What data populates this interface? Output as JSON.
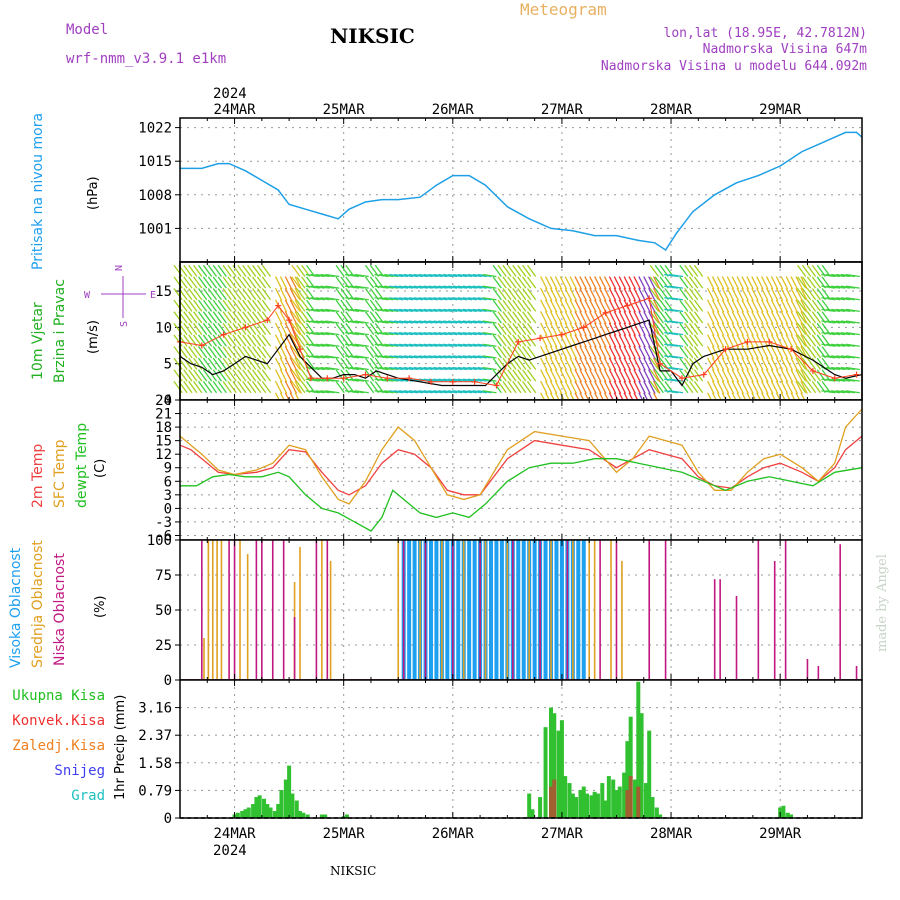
{
  "header": {
    "model_label": "Model",
    "model_name": "wrf-nmm_v3.9.1 e1km",
    "station": "NIKSIC",
    "title": "Meteogram",
    "lonlat": "lon,lat (18.95E, 42.7812N)",
    "elev": "Nadmorska Visina 647m",
    "elev_model": "Nadmorska Visina u modelu 644.092m"
  },
  "footer": {
    "station": "NIKSIC",
    "credit": "made by Angel"
  },
  "colors": {
    "pressure": "#1e9fe6",
    "t2m": "#f04040",
    "sfc": "#e0a020",
    "dew": "#20c020",
    "cloud_high": "#1ea0f0",
    "cloud_mid": "#e0a020",
    "cloud_low": "#c01880",
    "precip_total": "#30c030",
    "precip_conv": "#f03030",
    "precip_frozen": "#f08020",
    "snow": "#4040f0",
    "graupel": "#20c0c0",
    "wind_compass": "#a040c0",
    "wind_speed": "#000000",
    "gust": "#ff4020"
  },
  "chart_data": [
    {
      "type": "line",
      "id": "pressure",
      "ylabel": "Pritisak na nivou mora",
      "unit": "(hPa)",
      "year_label": "2024",
      "date_labels": [
        "24MAR",
        "25MAR",
        "26MAR",
        "27MAR",
        "28MAR",
        "29MAR"
      ],
      "date_positions": [
        0.5,
        1.5,
        2.5,
        3.5,
        4.5,
        5.5
      ],
      "xlim": [
        0,
        6.25
      ],
      "ylim": [
        994,
        1024
      ],
      "yticks": [
        1001,
        1008,
        1015,
        1022
      ],
      "x": [
        0,
        0.2,
        0.35,
        0.45,
        0.6,
        0.75,
        0.9,
        1.0,
        1.15,
        1.3,
        1.45,
        1.55,
        1.7,
        1.85,
        2.0,
        2.2,
        2.35,
        2.5,
        2.65,
        2.8,
        3.0,
        3.2,
        3.4,
        3.6,
        3.8,
        4.0,
        4.2,
        4.35,
        4.45,
        4.55,
        4.7,
        4.9,
        5.1,
        5.3,
        5.5,
        5.7,
        5.85,
        6.0,
        6.1,
        6.2,
        6.25
      ],
      "y": [
        1013.5,
        1013.5,
        1014.5,
        1014.5,
        1013,
        1011,
        1009,
        1006,
        1005,
        1004,
        1003,
        1005,
        1006.5,
        1007,
        1007,
        1007.5,
        1010,
        1012,
        1012,
        1010,
        1005.5,
        1003,
        1001,
        1000.5,
        999.5,
        999.5,
        998.5,
        998,
        996.5,
        1000,
        1004.5,
        1008,
        1010.5,
        1012,
        1014,
        1017,
        1018.5,
        1020,
        1021,
        1021,
        1020
      ]
    },
    {
      "type": "line",
      "id": "wind",
      "ylabel": [
        "10m Vjetar",
        "Brzina i Pravac"
      ],
      "unit": "(m/s)",
      "compass": {
        "north": "N",
        "south": "S",
        "west": "W",
        "east": "E"
      },
      "xlim": [
        0,
        6.25
      ],
      "ylim": [
        0,
        19
      ],
      "yticks": [
        0,
        5,
        10,
        15
      ],
      "speed": {
        "x": [
          0,
          0.1,
          0.2,
          0.3,
          0.4,
          0.5,
          0.6,
          0.7,
          0.8,
          0.9,
          1.0,
          1.1,
          1.2,
          1.3,
          1.4,
          1.5,
          1.6,
          1.7,
          1.8,
          1.9,
          2.0,
          2.2,
          2.4,
          2.6,
          2.8,
          3.0,
          3.1,
          3.2,
          3.3,
          3.4,
          3.5,
          3.6,
          3.7,
          3.8,
          3.9,
          4.0,
          4.1,
          4.2,
          4.3,
          4.4,
          4.5,
          4.6,
          4.7,
          4.8,
          5.0,
          5.2,
          5.4,
          5.6,
          5.8,
          6.0,
          6.1,
          6.25
        ],
        "y": [
          6,
          5,
          4.5,
          3.5,
          4,
          5,
          6,
          5.5,
          5,
          7,
          9,
          6,
          4.5,
          3,
          3,
          3.5,
          3.5,
          3,
          4,
          3.5,
          3,
          2.5,
          2,
          2,
          2,
          5,
          6,
          5.5,
          6,
          6.5,
          7,
          7.5,
          8,
          8.5,
          9,
          9.5,
          10,
          10.5,
          11,
          4,
          4,
          2,
          5,
          6,
          7,
          7,
          7.5,
          7,
          5.5,
          3.5,
          3,
          3.5
        ]
      },
      "gust": {
        "x": [
          0,
          0.2,
          0.4,
          0.6,
          0.8,
          0.9,
          1.0,
          1.1,
          1.2,
          1.35,
          1.5,
          1.7,
          1.9,
          2.1,
          2.3,
          2.5,
          2.7,
          2.9,
          3.1,
          3.3,
          3.5,
          3.7,
          3.9,
          4.1,
          4.3,
          4.4,
          4.6,
          4.8,
          5.0,
          5.2,
          5.4,
          5.6,
          5.8,
          6.0,
          6.2
        ],
        "y": [
          8,
          7.5,
          9,
          10,
          11,
          13,
          11,
          7,
          3,
          3,
          3,
          3.5,
          3,
          3,
          2.5,
          2.5,
          2.5,
          2,
          8,
          8.5,
          9,
          10,
          12,
          13,
          14,
          5,
          3,
          3.5,
          7,
          8,
          8,
          7,
          4,
          3,
          3.5
        ]
      }
    },
    {
      "type": "line",
      "id": "temperature",
      "ylabel": [
        "2m Temp",
        "SFC Temp",
        "dewpt Temp"
      ],
      "unit": "(C)",
      "xlim": [
        0,
        6.25
      ],
      "ylim": [
        -7,
        24
      ],
      "yticks": [
        -6,
        -3,
        0,
        3,
        6,
        9,
        12,
        15,
        18,
        21,
        24
      ],
      "series": [
        {
          "name": "2m Temp",
          "key": "t2m",
          "x": [
            0,
            0.1,
            0.2,
            0.35,
            0.5,
            0.7,
            0.85,
            1.0,
            1.15,
            1.3,
            1.45,
            1.55,
            1.7,
            1.85,
            2.0,
            2.15,
            2.3,
            2.45,
            2.6,
            2.75,
            3.0,
            3.25,
            3.5,
            3.75,
            4.0,
            4.15,
            4.3,
            4.45,
            4.6,
            4.75,
            4.9,
            5.05,
            5.2,
            5.35,
            5.5,
            5.7,
            5.85,
            6.0,
            6.1,
            6.25
          ],
          "y": [
            14,
            13,
            11,
            8,
            7.5,
            8,
            9,
            13,
            12.5,
            8,
            4,
            3,
            5,
            10,
            13,
            12,
            9,
            4,
            3,
            3,
            11,
            15,
            14,
            13,
            9,
            11,
            13,
            12,
            11,
            7,
            5,
            4.5,
            7,
            9,
            10,
            8,
            6,
            9,
            13,
            16
          ]
        },
        {
          "name": "SFC Temp",
          "key": "sfc",
          "x": [
            0,
            0.1,
            0.2,
            0.35,
            0.5,
            0.7,
            0.85,
            1.0,
            1.15,
            1.3,
            1.45,
            1.55,
            1.7,
            1.85,
            2.0,
            2.15,
            2.3,
            2.45,
            2.6,
            2.75,
            3.0,
            3.25,
            3.5,
            3.75,
            4.0,
            4.15,
            4.3,
            4.45,
            4.6,
            4.75,
            4.9,
            5.05,
            5.2,
            5.35,
            5.5,
            5.7,
            5.85,
            6.0,
            6.1,
            6.25
          ],
          "y": [
            16,
            14,
            12,
            8.5,
            7.5,
            8.5,
            10,
            14,
            13,
            7,
            2,
            1,
            6,
            13,
            18,
            15,
            9,
            3,
            2,
            3,
            13,
            17,
            16,
            15,
            8,
            11,
            16,
            15,
            14,
            8,
            4,
            4,
            8,
            11,
            12,
            9,
            6,
            10,
            18,
            22
          ]
        },
        {
          "name": "dewpt Temp",
          "key": "dew",
          "x": [
            0,
            0.15,
            0.3,
            0.45,
            0.6,
            0.75,
            0.9,
            1.0,
            1.15,
            1.3,
            1.45,
            1.6,
            1.75,
            1.85,
            1.95,
            2.05,
            2.2,
            2.35,
            2.5,
            2.65,
            2.8,
            3.0,
            3.2,
            3.4,
            3.6,
            3.8,
            4.0,
            4.2,
            4.4,
            4.6,
            4.8,
            5.0,
            5.2,
            5.4,
            5.6,
            5.8,
            6.0,
            6.25
          ],
          "y": [
            5,
            5,
            7,
            7.5,
            7,
            7,
            8,
            7,
            3,
            0,
            -1,
            -3,
            -5,
            -2,
            4,
            2,
            -1,
            -2,
            -1,
            -2,
            1,
            6,
            9,
            10,
            10,
            11,
            11,
            10,
            9,
            8,
            6,
            4,
            6,
            7,
            6,
            5,
            8,
            9
          ]
        }
      ]
    },
    {
      "type": "bar",
      "id": "cloud",
      "ylabel": [
        "Visoka Oblacnost",
        "Srednja Oblacnost",
        "Niska Oblacnost"
      ],
      "unit": "(%)",
      "xlim": [
        0,
        6.25
      ],
      "ylim": [
        0,
        100
      ],
      "yticks": [
        0,
        25,
        50,
        75,
        100
      ],
      "series": [
        {
          "name": "Visoka Oblacnost",
          "key": "cloud_high",
          "x": [
            2.05,
            2.1,
            2.15,
            2.2,
            2.25,
            2.3,
            2.35,
            2.4,
            2.45,
            2.5,
            2.55,
            2.6,
            2.65,
            2.7,
            2.75,
            2.8,
            2.85,
            2.9,
            2.95,
            3.0,
            3.05,
            3.1,
            3.15,
            3.2,
            3.25,
            3.3,
            3.35,
            3.4,
            3.45,
            3.5,
            3.55,
            3.6,
            3.65,
            3.7
          ],
          "values": [
            100,
            100,
            100,
            100,
            100,
            100,
            100,
            100,
            100,
            100,
            100,
            100,
            100,
            100,
            100,
            100,
            100,
            100,
            100,
            100,
            100,
            100,
            100,
            100,
            100,
            100,
            100,
            100,
            100,
            100,
            100,
            100,
            100,
            100
          ]
        },
        {
          "name": "Srednja Oblacnost",
          "key": "cloud_mid",
          "x": [
            0.22,
            0.26,
            0.3,
            0.34,
            0.38,
            0.55,
            0.62,
            1.05,
            1.1,
            1.3,
            1.38,
            2.0,
            2.2,
            2.4,
            2.6,
            2.8,
            3.0,
            3.2,
            3.4,
            3.6,
            3.75,
            3.8,
            3.95,
            4.05
          ],
          "values": [
            30,
            100,
            100,
            100,
            100,
            100,
            90,
            70,
            95,
            100,
            85,
            100,
            100,
            100,
            100,
            100,
            100,
            100,
            100,
            100,
            100,
            100,
            100,
            85
          ]
        },
        {
          "name": "Niska Oblacnost",
          "key": "cloud_low",
          "x": [
            0.2,
            0.45,
            0.5,
            0.7,
            0.75,
            0.85,
            0.95,
            1.05,
            1.25,
            1.35,
            2.05,
            2.25,
            2.5,
            2.75,
            3.05,
            3.3,
            3.55,
            3.85,
            4.0,
            4.3,
            4.45,
            4.9,
            4.95,
            5.1,
            5.3,
            5.45,
            5.55,
            5.75,
            5.85,
            6.05,
            6.2
          ],
          "values": [
            100,
            100,
            100,
            100,
            100,
            100,
            100,
            45,
            100,
            100,
            100,
            100,
            100,
            100,
            100,
            100,
            100,
            100,
            100,
            100,
            100,
            72,
            72,
            60,
            100,
            85,
            100,
            15,
            10,
            97,
            10
          ]
        }
      ]
    },
    {
      "type": "bar",
      "id": "precip",
      "ylabel": "1hr Precip (mm)",
      "legend": [
        "Ukupna Kisa",
        "Konvek.Kisa",
        "Zaledj.Kisa",
        "Snijeg",
        "Grad"
      ],
      "year_label": "2024",
      "date_labels": [
        "24MAR",
        "25MAR",
        "26MAR",
        "27MAR",
        "28MAR",
        "29MAR"
      ],
      "date_positions": [
        0.5,
        1.5,
        2.5,
        3.5,
        4.5,
        5.5
      ],
      "xlim": [
        0,
        6.25
      ],
      "ylim": [
        0,
        3.95
      ],
      "yticks": [
        0,
        0.79,
        1.58,
        2.37,
        3.16
      ],
      "series": [
        {
          "name": "Ukupna Kisa",
          "key": "precip_total",
          "x": [
            0.5,
            0.53,
            0.57,
            0.6,
            0.63,
            0.67,
            0.7,
            0.73,
            0.77,
            0.8,
            0.83,
            0.87,
            0.9,
            0.93,
            0.97,
            1.0,
            1.03,
            1.07,
            1.1,
            1.13,
            1.17,
            1.3,
            1.33,
            1.5,
            1.53,
            3.2,
            3.23,
            3.3,
            3.35,
            3.4,
            3.43,
            3.47,
            3.5,
            3.53,
            3.57,
            3.6,
            3.63,
            3.67,
            3.7,
            3.73,
            3.77,
            3.8,
            3.83,
            3.87,
            3.9,
            3.93,
            3.97,
            4.0,
            4.03,
            4.07,
            4.1,
            4.13,
            4.17,
            4.2,
            4.23,
            4.27,
            4.3,
            4.33,
            4.37,
            4.4,
            5.5,
            5.53,
            5.57,
            5.6
          ],
          "values": [
            0.1,
            0.15,
            0.2,
            0.25,
            0.3,
            0.4,
            0.6,
            0.65,
            0.55,
            0.4,
            0.3,
            0.2,
            0.4,
            0.8,
            1.1,
            1.5,
            0.7,
            0.5,
            0.2,
            0.15,
            0.1,
            0.1,
            0.1,
            0.05,
            0.1,
            0.7,
            0.25,
            0.6,
            2.6,
            3.16,
            3.0,
            2.5,
            2.8,
            1.2,
            1.0,
            0.7,
            0.6,
            0.8,
            0.9,
            0.7,
            0.65,
            0.75,
            0.7,
            1.0,
            0.5,
            1.2,
            1.1,
            0.8,
            0.9,
            1.3,
            2.2,
            2.9,
            1.1,
            3.9,
            3.0,
            1.0,
            2.5,
            0.6,
            0.3,
            0.1,
            0.3,
            0.35,
            0.15,
            0.1
          ]
        },
        {
          "name": "Konvek.Kisa",
          "key": "precip_conv",
          "x": [
            3.4,
            3.43,
            4.1,
            4.13,
            4.2
          ],
          "values": [
            0.9,
            1.1,
            0.8,
            1.2,
            0.9
          ]
        }
      ]
    }
  ]
}
